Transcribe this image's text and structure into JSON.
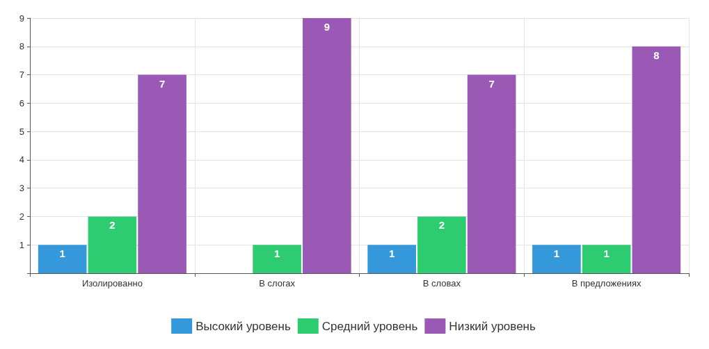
{
  "chart_data": {
    "type": "bar",
    "categories": [
      "Изолированно",
      "В слогах",
      "В словах",
      "В предложениях"
    ],
    "series": [
      {
        "name": "Высокий уровень",
        "color": "#3498db",
        "values": [
          1,
          0,
          1,
          1
        ],
        "value_labels": [
          "1",
          null,
          "1",
          "1"
        ]
      },
      {
        "name": "Средний уровень",
        "color": "#2ecc71",
        "values": [
          2,
          1,
          2,
          1
        ],
        "value_labels": [
          "2",
          "1",
          "2",
          "1"
        ]
      },
      {
        "name": "Низкий уровень",
        "color": "#9b59b6",
        "values": [
          7,
          9,
          7,
          8
        ],
        "value_labels": [
          "7",
          "9",
          "7",
          "8"
        ]
      }
    ],
    "ylim": [
      0,
      9
    ],
    "yticks": [
      {
        "value": 0,
        "label": null
      },
      1,
      2,
      3,
      4,
      5,
      6,
      7,
      8,
      9
    ],
    "grid": true,
    "legend": "bottom"
  }
}
